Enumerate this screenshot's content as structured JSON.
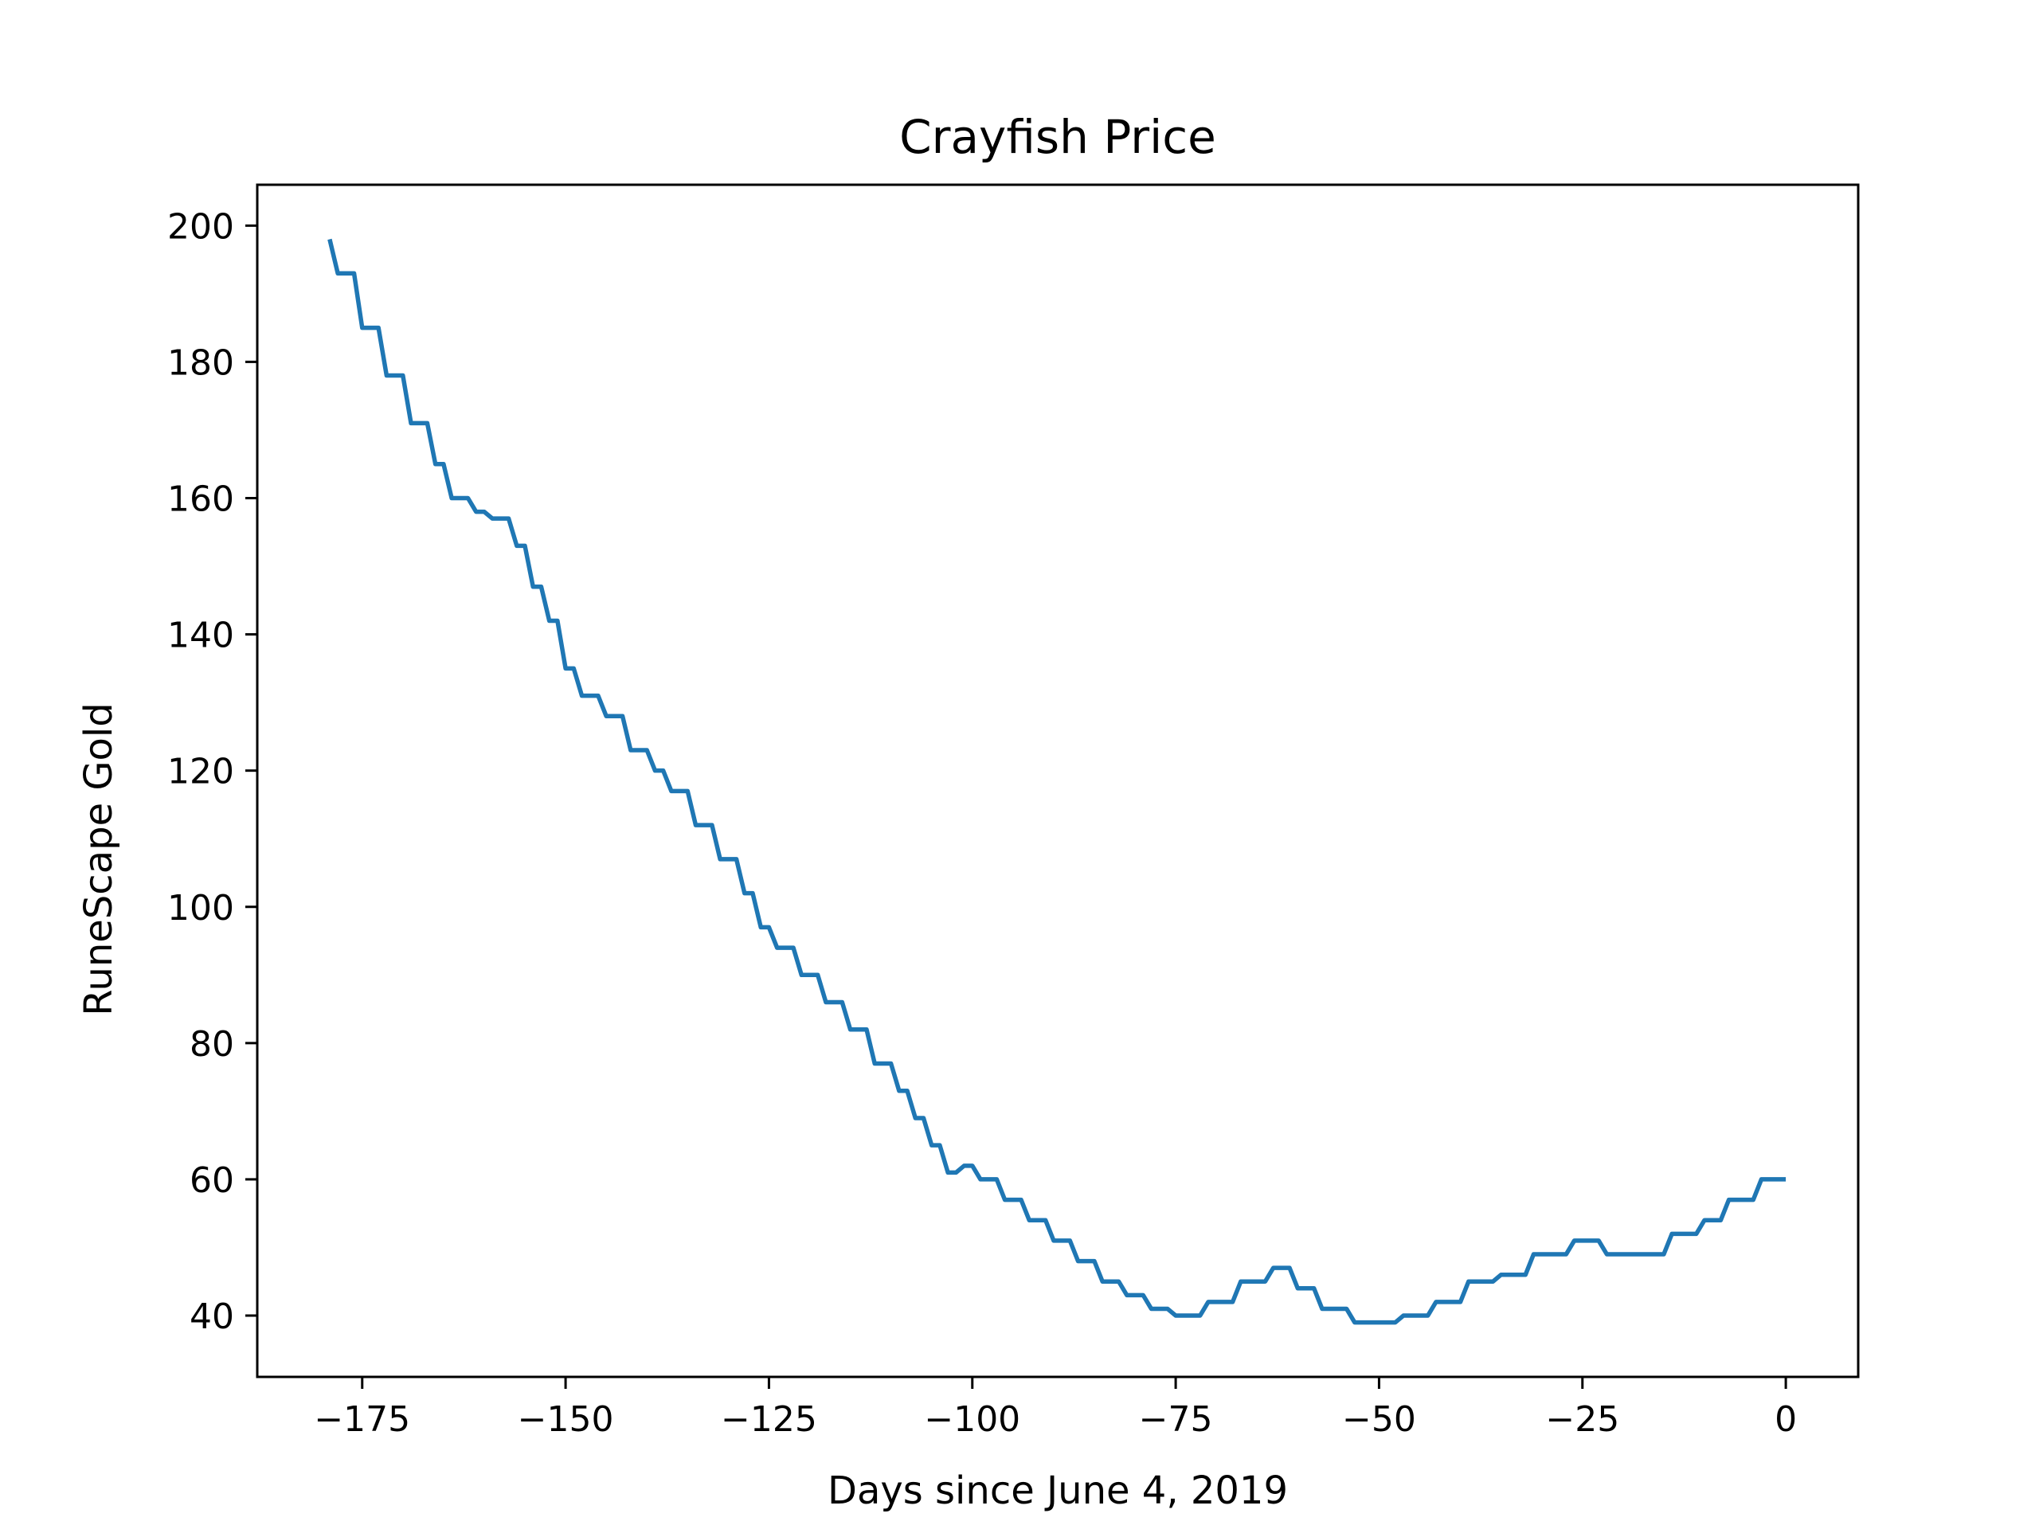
{
  "chart_data": {
    "type": "line",
    "title": "Crayfish Price",
    "xlabel": "Days since June 4, 2019",
    "ylabel": "RuneScape Gold",
    "xlim": [
      -187.9,
      8.9
    ],
    "ylim": [
      31,
      206
    ],
    "grid": false,
    "x_ticks": [
      -175,
      -150,
      -125,
      -100,
      -75,
      -50,
      -25,
      0
    ],
    "x_tick_labels": [
      "−175",
      "−150",
      "−125",
      "−100",
      "−75",
      "−50",
      "−25",
      "0"
    ],
    "y_ticks": [
      40,
      60,
      80,
      100,
      120,
      140,
      160,
      180,
      200
    ],
    "y_tick_labels": [
      "40",
      "60",
      "80",
      "100",
      "120",
      "140",
      "160",
      "180",
      "200"
    ],
    "colors": {
      "line": "#1f77b4",
      "axes": "#000000",
      "background": "#ffffff"
    },
    "series": [
      {
        "x": [
          -179,
          -178,
          -177,
          -176,
          -175,
          -174,
          -173,
          -172,
          -171,
          -170,
          -169,
          -168,
          -167,
          -166,
          -165,
          -164,
          -163,
          -162,
          -161,
          -160,
          -159,
          -158,
          -157,
          -156,
          -155,
          -154,
          -153,
          -152,
          -151,
          -150,
          -149,
          -148,
          -147,
          -146,
          -145,
          -144,
          -143,
          -142,
          -141,
          -140,
          -139,
          -138,
          -137,
          -136,
          -135,
          -134,
          -133,
          -132,
          -131,
          -130,
          -129,
          -128,
          -127,
          -126,
          -125,
          -124,
          -123,
          -122,
          -121,
          -120,
          -119,
          -118,
          -117,
          -116,
          -115,
          -114,
          -113,
          -112,
          -111,
          -110,
          -109,
          -108,
          -107,
          -106,
          -105,
          -104,
          -103,
          -102,
          -101,
          -100,
          -99,
          -98,
          -97,
          -96,
          -95,
          -94,
          -93,
          -92,
          -91,
          -90,
          -89,
          -88,
          -87,
          -86,
          -85,
          -84,
          -83,
          -82,
          -81,
          -80,
          -79,
          -78,
          -77,
          -76,
          -75,
          -74,
          -73,
          -72,
          -71,
          -70,
          -69,
          -68,
          -67,
          -66,
          -65,
          -64,
          -63,
          -62,
          -61,
          -60,
          -59,
          -58,
          -57,
          -56,
          -55,
          -54,
          -53,
          -52,
          -51,
          -50,
          -49,
          -48,
          -47,
          -46,
          -45,
          -44,
          -43,
          -42,
          -41,
          -40,
          -39,
          -38,
          -37,
          -36,
          -35,
          -34,
          -33,
          -32,
          -31,
          -30,
          -29,
          -28,
          -27,
          -26,
          -25,
          -24,
          -23,
          -22,
          -21,
          -20,
          -19,
          -18,
          -17,
          -16,
          -15,
          -14,
          -13,
          -12,
          -11,
          -10,
          -9,
          -8,
          -7,
          -6,
          -5,
          -4,
          -3,
          -2,
          -1,
          0
        ],
        "y": [
          198,
          193,
          193,
          193,
          185,
          185,
          185,
          178,
          178,
          178,
          171,
          171,
          171,
          165,
          165,
          160,
          160,
          160,
          158,
          158,
          157,
          157,
          157,
          153,
          153,
          147,
          147,
          142,
          142,
          135,
          135,
          131,
          131,
          131,
          128,
          128,
          128,
          123,
          123,
          123,
          120,
          120,
          117,
          117,
          117,
          112,
          112,
          112,
          107,
          107,
          107,
          102,
          102,
          97,
          97,
          94,
          94,
          94,
          90,
          90,
          90,
          86,
          86,
          86,
          82,
          82,
          82,
          77,
          77,
          77,
          73,
          73,
          69,
          69,
          65,
          65,
          61,
          61,
          62,
          62,
          60,
          60,
          60,
          57,
          57,
          57,
          54,
          54,
          54,
          51,
          51,
          51,
          48,
          48,
          48,
          45,
          45,
          45,
          43,
          43,
          43,
          41,
          41,
          41,
          40,
          40,
          40,
          40,
          42,
          42,
          42,
          42,
          45,
          45,
          45,
          45,
          47,
          47,
          47,
          44,
          44,
          44,
          41,
          41,
          41,
          41,
          39,
          39,
          39,
          39,
          39,
          39,
          40,
          40,
          40,
          40,
          42,
          42,
          42,
          42,
          45,
          45,
          45,
          45,
          46,
          46,
          46,
          46,
          49,
          49,
          49,
          49,
          49,
          51,
          51,
          51,
          51,
          49,
          49,
          49,
          49,
          49,
          49,
          49,
          49,
          52,
          52,
          52,
          52,
          54,
          54,
          54,
          57,
          57,
          57,
          57,
          60,
          60,
          60,
          60
        ]
      }
    ]
  }
}
